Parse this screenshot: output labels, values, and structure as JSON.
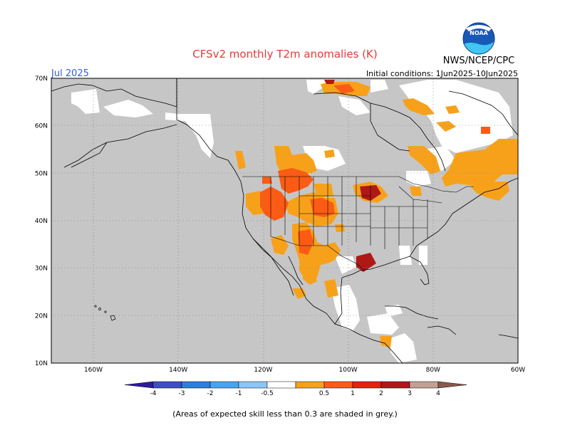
{
  "title": "CFSv2 monthly T2m anomalies (K)",
  "agency": "NWS/NCEP/CPC",
  "logo_text": "NOAA",
  "month": "Jul 2025",
  "init": "Initial conditions: 1Jun2025-10Jun2025",
  "lat_labels": [
    "70N",
    "60N",
    "50N",
    "40N",
    "30N",
    "20N",
    "10N"
  ],
  "lon_labels": [
    "160W",
    "140W",
    "120W",
    "100W",
    "80W",
    "60W"
  ],
  "colorbar": {
    "labels": [
      "-4",
      "-3",
      "-2",
      "-1",
      "-0.5",
      "0.5",
      "1",
      "2",
      "3",
      "4"
    ],
    "colors": [
      "#2e1a9e",
      "#3c4fc8",
      "#2f7de0",
      "#4aa3ee",
      "#8ac6f8",
      "#ffffff",
      "#f7a11a",
      "#fb5b14",
      "#e5230f",
      "#b01818",
      "#c39f94",
      "#8a5a4c"
    ]
  },
  "footnote": "(Areas of expected skill less than 0.3 are shaded in grey.)",
  "colors": {
    "grey": "#c6c6c6",
    "orange": "#f7a11a",
    "red_orange": "#fb5b14",
    "dark_red": "#b01818",
    "title_red": "#e33a3a",
    "month_blue": "#2f5ed6"
  }
}
